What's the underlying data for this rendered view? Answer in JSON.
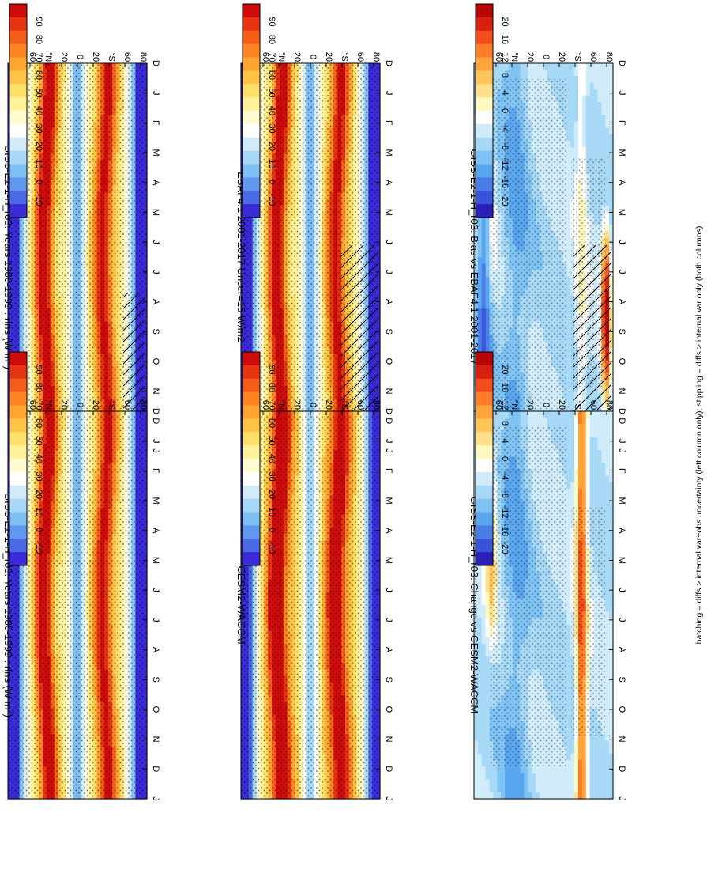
{
  "figure_caption": "hatching = diffs > internal var+obs uncertainty (left column only); stippling = diffs > internal var only (both columns)",
  "colors": {
    "full_scale": [
      "#3a2ad8",
      "#4a6ae6",
      "#5f98ee",
      "#7ec0f4",
      "#a7d8f7",
      "#d2ecfa",
      "#ffffff",
      "#fffbd1",
      "#fff29a",
      "#ffe06a",
      "#ffc446",
      "#ffa530",
      "#ff8422",
      "#f55e18",
      "#e63413",
      "#cf0b0b"
    ],
    "diff_scale": [
      "#2a1fb8",
      "#3852d8",
      "#4a7ee6",
      "#5aa6ee",
      "#7ec3f4",
      "#a7d9f6",
      "#d0ecfa",
      "#ffffff",
      "#fff8c0",
      "#ffe08a",
      "#ffc45a",
      "#ffa43a",
      "#ff7c28",
      "#f24d1a",
      "#d8200f",
      "#b80606"
    ]
  },
  "chart_data": [
    {
      "id": "top-left",
      "type": "heatmap",
      "title": "GISS-E2-1-H_r03: Years 1980-1999 : rlns (W m",
      "title_sup": "2",
      "title_end": ")",
      "x_ticks": [
        "D",
        "J",
        "F",
        "M",
        "A",
        "M",
        "J",
        "J",
        "A",
        "S",
        "O",
        "N",
        "D",
        "J"
      ],
      "y_ticks": [
        "80",
        "60",
        "°N",
        "20",
        "0",
        "20",
        "°S",
        "60",
        "80"
      ],
      "scale": "full",
      "stipple": "all",
      "hatch": "south-late",
      "colorbar_labels": [
        "90",
        "80",
        "70",
        "60",
        "50",
        "40",
        "30",
        "20",
        "10",
        "0",
        "-10"
      ]
    },
    {
      "id": "top-right",
      "type": "heatmap",
      "title": "GISS-E2-1-H_r03: Years 1980-1999 : rlns (W m",
      "title_sup": "2",
      "title_end": ")",
      "x_ticks": [
        "D",
        "J",
        "F",
        "M",
        "A",
        "M",
        "J",
        "J",
        "A",
        "S",
        "O",
        "N",
        "D",
        "J"
      ],
      "y_ticks": [
        "80",
        "60",
        "°N",
        "20",
        "0",
        "20",
        "°S",
        "60",
        "80"
      ],
      "scale": "full",
      "stipple": "all",
      "hatch": "none",
      "colorbar_labels": [
        "90",
        "80",
        "70",
        "60",
        "50",
        "40",
        "30",
        "20",
        "10",
        "0",
        "-10"
      ]
    },
    {
      "id": "middle-left",
      "type": "heatmap",
      "title": "EBAF4.1 2001-2017 Uncer=15 W/m2",
      "title_sup": "",
      "title_end": "",
      "x_ticks": [
        "D",
        "J",
        "F",
        "M",
        "A",
        "M",
        "J",
        "J",
        "A",
        "S",
        "O",
        "N",
        "D",
        "J"
      ],
      "y_ticks": [
        "80",
        "60",
        "°N",
        "20",
        "0",
        "20",
        "°S",
        "60",
        "80"
      ],
      "scale": "full",
      "stipple": "all",
      "hatch": "south-wide",
      "colorbar_labels": [
        "90",
        "80",
        "70",
        "60",
        "50",
        "40",
        "30",
        "20",
        "10",
        "0",
        "-10"
      ]
    },
    {
      "id": "middle-right",
      "type": "heatmap",
      "title": "CESM2-WACCM",
      "title_sup": "",
      "title_end": "",
      "x_ticks": [
        "D",
        "J",
        "F",
        "M",
        "A",
        "M",
        "J",
        "J",
        "A",
        "S",
        "O",
        "N",
        "D",
        "J"
      ],
      "y_ticks": [
        "80",
        "60",
        "°N",
        "20",
        "0",
        "20",
        "°S",
        "60",
        "80"
      ],
      "scale": "full",
      "stipple": "all",
      "hatch": "none",
      "colorbar_labels": [
        "90",
        "80",
        "70",
        "60",
        "50",
        "40",
        "30",
        "20",
        "10",
        "0",
        "-10"
      ]
    },
    {
      "id": "bottom-left",
      "type": "heatmap",
      "title": "GISS-E2-1-H_r03: Bias vs EBAF4.1 2001-2017",
      "title_sup": "",
      "title_end": "",
      "x_ticks": [
        "D",
        "J",
        "F",
        "M",
        "A",
        "M",
        "J",
        "J",
        "A",
        "S",
        "O",
        "N",
        "D",
        "J"
      ],
      "y_ticks": [
        "80",
        "60",
        "°N",
        "20",
        "0",
        "20",
        "°S",
        "60",
        "80"
      ],
      "scale": "diff",
      "stipple": "partial",
      "hatch": "south-wide",
      "colorbar_labels": [
        "20",
        "16",
        "12",
        "8",
        "4",
        "0",
        "-4",
        "-8",
        "-12",
        "-16",
        "-20"
      ]
    },
    {
      "id": "bottom-right",
      "type": "heatmap",
      "title": "GISS-E2-1-H_r03: Change vs CESM2-WACCM",
      "title_sup": "",
      "title_end": "",
      "x_ticks": [
        "D",
        "J",
        "F",
        "M",
        "A",
        "M",
        "J",
        "J",
        "A",
        "S",
        "O",
        "N",
        "D",
        "J"
      ],
      "y_ticks": [
        "80",
        "60",
        "°N",
        "20",
        "0",
        "20",
        "°S",
        "60",
        "80"
      ],
      "scale": "diff",
      "stipple": "partial",
      "hatch": "none",
      "colorbar_labels": [
        "20",
        "16",
        "12",
        "8",
        "4",
        "0",
        "-4",
        "-8",
        "-12",
        "-16",
        "-20"
      ]
    }
  ]
}
